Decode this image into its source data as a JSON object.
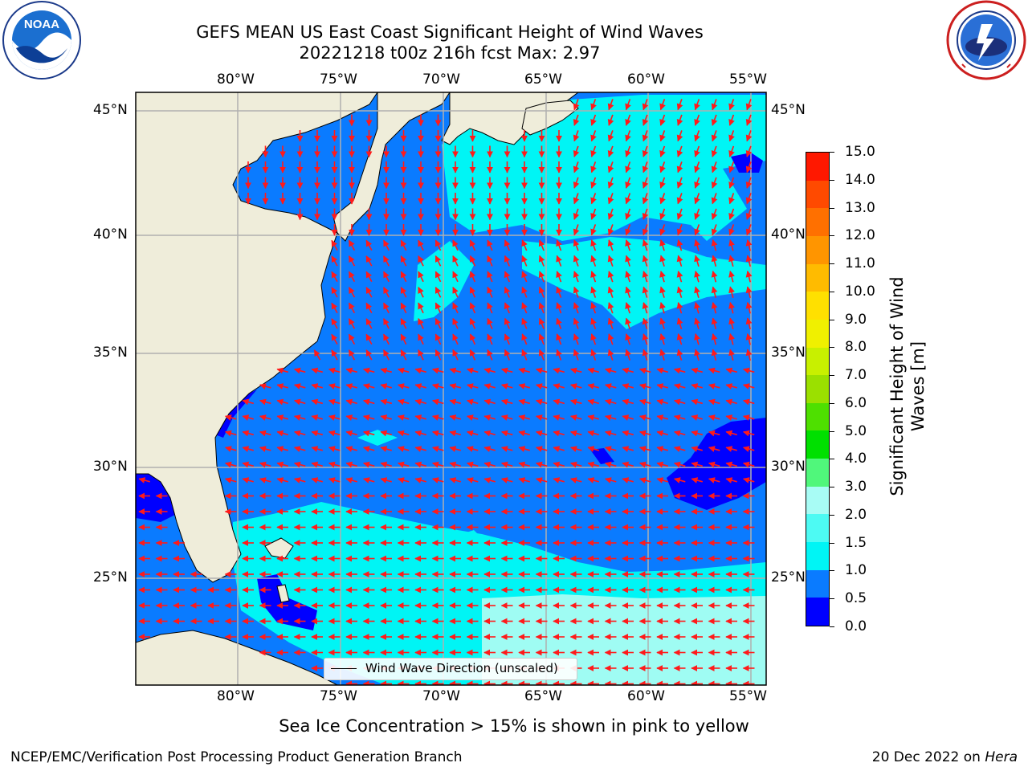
{
  "header": {
    "title_line1": "GEFS MEAN US East Coast Significant Height of Wind Waves",
    "title_line2": "20221218 t00z 216h fcst   Max: 2.97"
  },
  "logos": {
    "left": {
      "text": "NOAA",
      "ring_text": "NATIONAL OCEANIC AND ATMOSPHERIC ADMINISTRATION · U.S. DEPARTMENT OF COMMERCE"
    },
    "right": {
      "ring_text": "NATIONAL WEATHER SERVICE"
    }
  },
  "map": {
    "lon_labels": [
      "80°W",
      "75°W",
      "70°W",
      "65°W",
      "60°W",
      "55°W"
    ],
    "lat_labels": [
      "45°N",
      "40°N",
      "35°N",
      "30°N",
      "25°N"
    ],
    "legend_label": "Wind Wave Direction (unscaled)",
    "colors": {
      "land": "#efedda",
      "ocean_deep": "#0000ff",
      "ocean_mid": "#0a7bff",
      "ocean_light": "#00f5f5",
      "ocean_pale": "#9ffcf3",
      "arrow": "#ff1a1a",
      "grid": "#b0b0b0"
    }
  },
  "colorbar": {
    "label_line1": "Significant Height of Wind",
    "label_line2": "Waves [m]",
    "ticks": [
      "0.0",
      "0.5",
      "1.0",
      "1.5",
      "2.0",
      "3.0",
      "4.0",
      "5.0",
      "6.0",
      "7.0",
      "8.0",
      "9.0",
      "10.0",
      "11.0",
      "12.0",
      "13.0",
      "14.0",
      "15.0"
    ],
    "colors": [
      "#0000ff",
      "#0a7bff",
      "#00f5f5",
      "#4dfaf3",
      "#a8fcf5",
      "#50f77b",
      "#00e000",
      "#4ee000",
      "#9be000",
      "#c8f000",
      "#f0f000",
      "#ffe000",
      "#ffbb00",
      "#ff9500",
      "#ff7000",
      "#ff4a00",
      "#ff1800"
    ]
  },
  "footer": {
    "note": "Sea Ice Concentration > 15% is shown in pink to yellow",
    "left": "NCEP/EMC/Verification Post Processing Product Generation Branch",
    "right_date": "20 Dec 2022 on ",
    "right_host": "Hera"
  }
}
